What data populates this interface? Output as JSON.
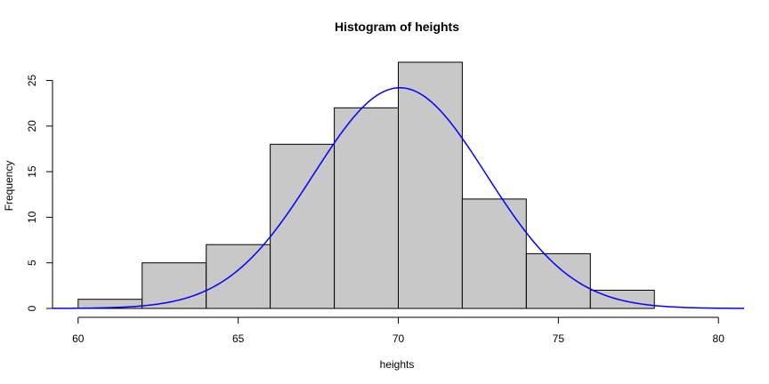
{
  "chart_data": {
    "type": "bar",
    "title": "Histogram of heights",
    "xlabel": "heights",
    "ylabel": "Frequency",
    "bins": [
      {
        "start": 60,
        "end": 62,
        "count": 1
      },
      {
        "start": 62,
        "end": 64,
        "count": 5
      },
      {
        "start": 64,
        "end": 66,
        "count": 7
      },
      {
        "start": 66,
        "end": 68,
        "count": 18
      },
      {
        "start": 68,
        "end": 70,
        "count": 22
      },
      {
        "start": 70,
        "end": 72,
        "count": 27
      },
      {
        "start": 72,
        "end": 74,
        "count": 12
      },
      {
        "start": 74,
        "end": 76,
        "count": 6
      },
      {
        "start": 76,
        "end": 78,
        "count": 2
      }
    ],
    "x_ticks": [
      60,
      65,
      70,
      75,
      80
    ],
    "y_ticks": [
      0,
      5,
      10,
      15,
      20,
      25
    ],
    "xlim": [
      59.2,
      80.8
    ],
    "ylim": [
      0,
      27
    ],
    "bar_color": "#c8c8c8",
    "curve": {
      "kind": "normal-density-overlay",
      "mean": 70.05,
      "sd": 2.7,
      "peak": 24.2,
      "color": "#0000ff"
    },
    "grid": false
  }
}
